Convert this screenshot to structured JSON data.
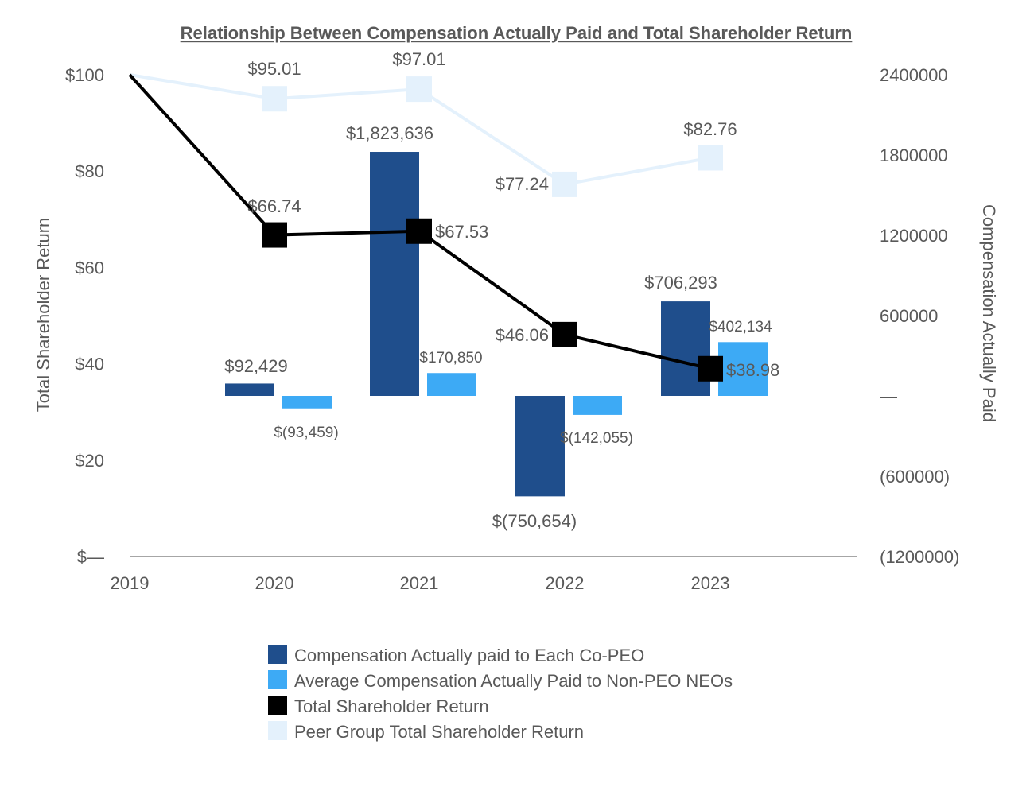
{
  "chart_data": {
    "type": "bar+line",
    "title": "Relationship Between Compensation Actually Paid and Total Shareholder Return",
    "categories": [
      "2019",
      "2020",
      "2021",
      "2022",
      "2023"
    ],
    "left_axis": {
      "label": "Total Shareholder Return",
      "ylim": [
        0,
        100
      ],
      "ticks": [
        {
          "value": 100,
          "label": "$100"
        },
        {
          "value": 80,
          "label": "$80"
        },
        {
          "value": 60,
          "label": "$60"
        },
        {
          "value": 40,
          "label": "$40"
        },
        {
          "value": 20,
          "label": "$20"
        },
        {
          "value": 0,
          "label": "$—"
        }
      ]
    },
    "right_axis": {
      "label": "Compensation Actually Paid",
      "ylim": [
        -1200000,
        2400000
      ],
      "ticks": [
        {
          "value": 2400000,
          "label": "2400000"
        },
        {
          "value": 1800000,
          "label": "1800000"
        },
        {
          "value": 1200000,
          "label": "1200000"
        },
        {
          "value": 600000,
          "label": "600000"
        },
        {
          "value": 0,
          "label": "—"
        },
        {
          "value": -600000,
          "label": "(600000)"
        },
        {
          "value": -1200000,
          "label": "(1200000)"
        }
      ]
    },
    "series": [
      {
        "name": "Compensation Actually paid to Each Co-PEO",
        "kind": "bar",
        "axis": "right",
        "color": "#1F4E8C",
        "x": [
          "2020",
          "2021",
          "2022",
          "2023"
        ],
        "values": [
          92429,
          1823636,
          -750654,
          706293
        ],
        "labels": [
          "$92,429",
          "$1,823,636",
          "$(750,654)",
          "$706,293"
        ]
      },
      {
        "name": "Average Compensation Actually Paid to Non-PEO NEOs",
        "kind": "bar",
        "axis": "right",
        "color": "#3DAAF5",
        "x": [
          "2020",
          "2021",
          "2022",
          "2023"
        ],
        "values": [
          -93459,
          170850,
          -142055,
          402134
        ],
        "labels": [
          "$(93,459)",
          "$170,850",
          "$(142,055)",
          "$402,134"
        ]
      },
      {
        "name": "Total Shareholder Return",
        "kind": "line",
        "axis": "left",
        "color": "#000000",
        "x": [
          "2019",
          "2020",
          "2021",
          "2022",
          "2023"
        ],
        "values": [
          100,
          66.74,
          67.53,
          46.06,
          38.98
        ],
        "labels": [
          "",
          "$66.74",
          "$67.53",
          "$46.06",
          "$38.98"
        ]
      },
      {
        "name": "Peer Group Total Shareholder Return",
        "kind": "line",
        "axis": "left",
        "color": "#E4F1FC",
        "x": [
          "2019",
          "2020",
          "2021",
          "2022",
          "2023"
        ],
        "values": [
          100,
          95.01,
          97.01,
          77.24,
          82.76
        ],
        "labels": [
          "",
          "$95.01",
          "$97.01",
          "$77.24",
          "$82.76"
        ]
      }
    ],
    "legend_position": "bottom"
  }
}
